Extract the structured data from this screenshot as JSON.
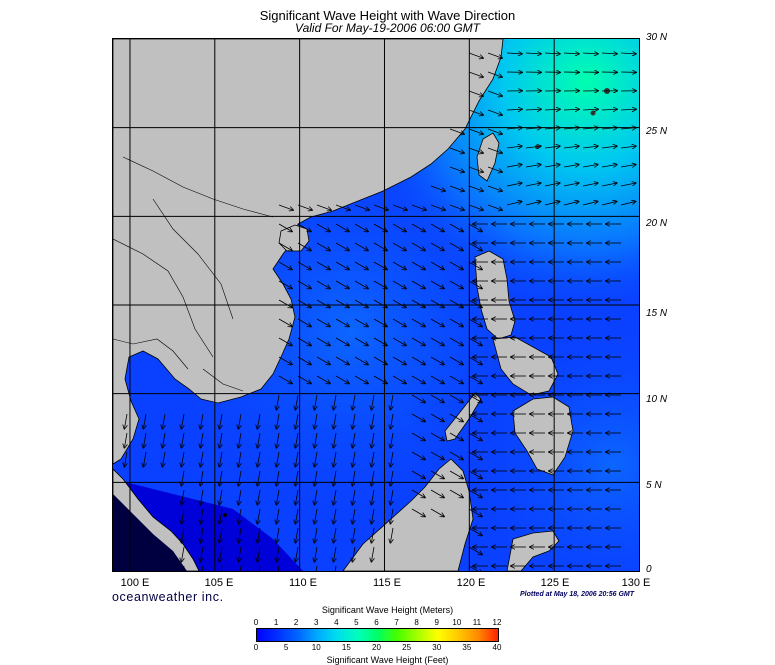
{
  "title": "Significant Wave Height with Wave Direction",
  "subtitle": "Valid For May-19-2006 06:00 GMT",
  "lat_labels": [
    "30 N",
    "25 N",
    "20 N",
    "15 N",
    "10 N",
    "5 N",
    "0"
  ],
  "lon_labels": [
    "100 E",
    "105 E",
    "110 E",
    "115 E",
    "120 E",
    "125 E",
    "130 E"
  ],
  "brand": "oceanweather inc.",
  "plotted_text": "Plotted at May 18, 2006 20:56 GMT",
  "legend": {
    "meters_title": "Significant Wave Height (Meters)",
    "feet_title": "Significant Wave Height (Feet)",
    "meters_ticks": [
      "0",
      "1",
      "2",
      "3",
      "4",
      "5",
      "6",
      "7",
      "8",
      "9",
      "10",
      "11",
      "12"
    ],
    "feet_ticks": [
      "0",
      "5",
      "10",
      "15",
      "20",
      "25",
      "30",
      "35",
      "40"
    ]
  },
  "colors": {
    "land": "#c0c0c0",
    "sea_low": "#0000ff",
    "sea_mid": "#0a5cff",
    "sea_high": "#00e8d0",
    "grid": "#000000"
  },
  "map_extent": {
    "lon_min": 99,
    "lon_max": 130,
    "lat_min": 0,
    "lat_max": 30
  }
}
